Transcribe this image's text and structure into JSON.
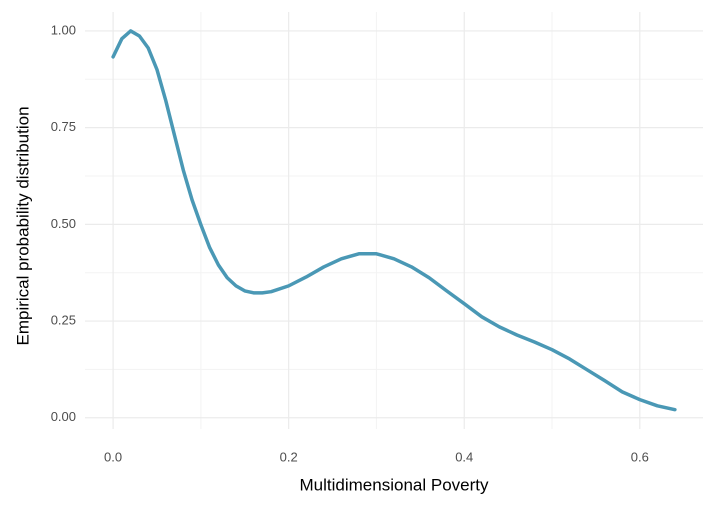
{
  "chart_data": {
    "type": "line",
    "x_label": "Multidimensional Poverty",
    "y_label": "Empirical probability distribution",
    "x": [
      0,
      0.01,
      0.02,
      0.03,
      0.04,
      0.05,
      0.06,
      0.07,
      0.08,
      0.09,
      0.1,
      0.11,
      0.12,
      0.13,
      0.14,
      0.15,
      0.16,
      0.17,
      0.18,
      0.2,
      0.22,
      0.24,
      0.26,
      0.28,
      0.3,
      0.32,
      0.34,
      0.36,
      0.38,
      0.4,
      0.42,
      0.44,
      0.46,
      0.48,
      0.5,
      0.52,
      0.54,
      0.56,
      0.58,
      0.6,
      0.62,
      0.64
    ],
    "series": [
      {
        "color": "#4a98b5",
        "values": [
          0.933,
          0.98,
          1.0,
          0.987,
          0.956,
          0.9,
          0.82,
          0.73,
          0.64,
          0.563,
          0.499,
          0.44,
          0.395,
          0.362,
          0.341,
          0.328,
          0.323,
          0.323,
          0.326,
          0.341,
          0.364,
          0.39,
          0.411,
          0.424,
          0.424,
          0.411,
          0.39,
          0.362,
          0.328,
          0.295,
          0.261,
          0.235,
          0.214,
          0.196,
          0.176,
          0.152,
          0.124,
          0.096,
          0.067,
          0.047,
          0.031,
          0.021
        ]
      }
    ],
    "xlim": [
      -0.032,
      0.672
    ],
    "ylim": [
      -0.029,
      1.049
    ],
    "xticks": [
      {
        "value": 0,
        "label": "0.0"
      },
      0.2,
      0.4,
      0.6
    ],
    "yticks": [
      {
        "value": 0,
        "label": "0.00"
      },
      0.25,
      {
        "value": 0.5,
        "label": "0.50"
      },
      0.75,
      {
        "value": 1,
        "label": "1.00"
      }
    ],
    "xticks_minor": [
      0.1,
      0.3,
      0.5
    ],
    "yticks_minor": [
      0.125,
      0.375,
      0.625,
      0.875
    ],
    "grid": true
  }
}
